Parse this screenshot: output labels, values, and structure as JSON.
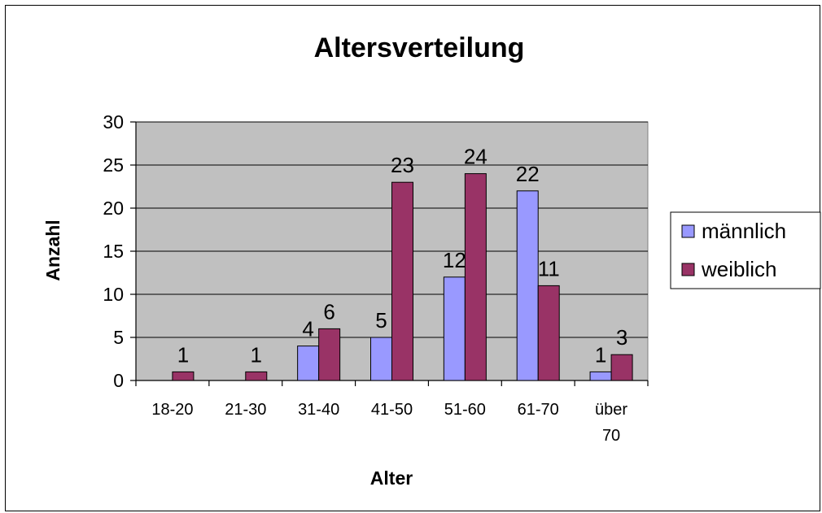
{
  "chart_data": {
    "type": "bar",
    "title": "Altersverteilung",
    "xlabel": "Alter",
    "ylabel": "Anzahl",
    "categories": [
      "18-20",
      "21-30",
      "31-40",
      "41-50",
      "51-60",
      "61-70",
      "über 70"
    ],
    "series": [
      {
        "name": "männlich",
        "values": [
          0,
          0,
          4,
          5,
          12,
          22,
          1
        ],
        "color": "#9999ff"
      },
      {
        "name": "weiblich",
        "values": [
          1,
          1,
          6,
          23,
          24,
          11,
          3
        ],
        "color": "#993366"
      }
    ],
    "ylim": [
      0,
      30
    ],
    "yticks": [
      0,
      5,
      10,
      15,
      20,
      25,
      30
    ],
    "grid": true,
    "plot_background": "#c0c0c0",
    "legend_position": "right"
  }
}
